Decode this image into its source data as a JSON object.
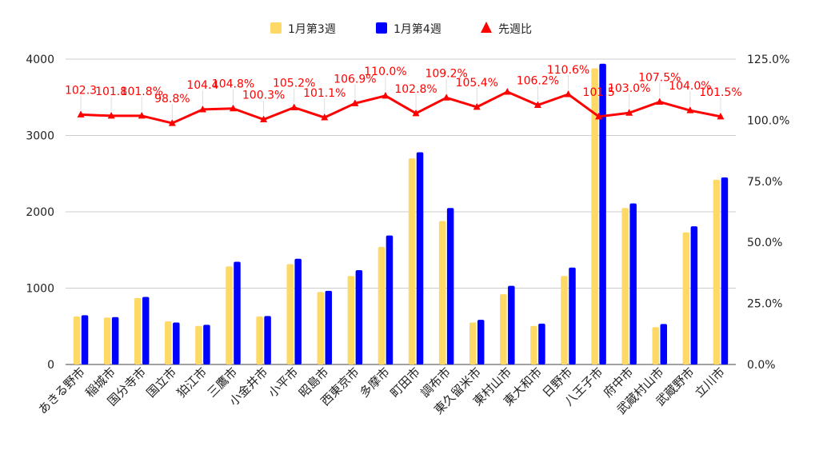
{
  "chart_data": {
    "type": "bar",
    "categories": [
      "あきる野市",
      "稲城市",
      "国分寺市",
      "国立市",
      "狛江市",
      "三鷹市",
      "小金井市",
      "小平市",
      "昭島市",
      "西東京市",
      "多摩市",
      "町田市",
      "調布市",
      "東久留米市",
      "東村山市",
      "東大和市",
      "日野市",
      "八王子市",
      "府中市",
      "武蔵村山市",
      "武蔵野市",
      "立川市"
    ],
    "series": [
      {
        "name": "1月第3週",
        "axis": "left",
        "color": "#ffd966",
        "values": [
          630,
          615,
          870,
          565,
          505,
          1285,
          630,
          1315,
          950,
          1160,
          1540,
          2700,
          1880,
          550,
          920,
          505,
          1160,
          3880,
          2050,
          490,
          1730,
          2420
        ]
      },
      {
        "name": "1月第4週",
        "axis": "left",
        "color": "#0000ff",
        "values": [
          645,
          620,
          885,
          550,
          520,
          1345,
          635,
          1385,
          965,
          1235,
          1690,
          2780,
          2050,
          585,
          1030,
          535,
          1270,
          3940,
          2110,
          530,
          1810,
          2450
        ]
      },
      {
        "name": "先週比",
        "axis": "right",
        "type": "line",
        "color": "#ff0000",
        "values": [
          102.3,
          101.8,
          101.8,
          98.8,
          104.4,
          104.8,
          100.3,
          105.2,
          101.1,
          106.9,
          110.0,
          102.8,
          109.2,
          105.4,
          111.6,
          106.2,
          110.6,
          101.5,
          103.0,
          107.5,
          104.0,
          101.5
        ],
        "labels": [
          "102.3",
          "101.8",
          "101.8%",
          "98.8%",
          "104.4",
          "104.8%",
          "100.3%",
          "105.2%",
          "101.1%",
          "106.9%",
          "110.0%",
          "102.8%",
          "109.2%",
          "105.4%",
          "",
          "106.2%",
          "110.6%",
          "101.5",
          "103.0%",
          "107.5%",
          "104.0%",
          "101.5%"
        ]
      }
    ],
    "y_left": {
      "min": 0,
      "max": 4000,
      "ticks": [
        "0",
        "1000",
        "2000",
        "3000",
        "4000"
      ]
    },
    "y_right": {
      "min": 0,
      "max": 125,
      "ticks": [
        "0.0%",
        "25.0%",
        "50.0%",
        "75.0%",
        "100.0%",
        "125.0%"
      ]
    },
    "legend_position": "top-center",
    "grid": true
  }
}
